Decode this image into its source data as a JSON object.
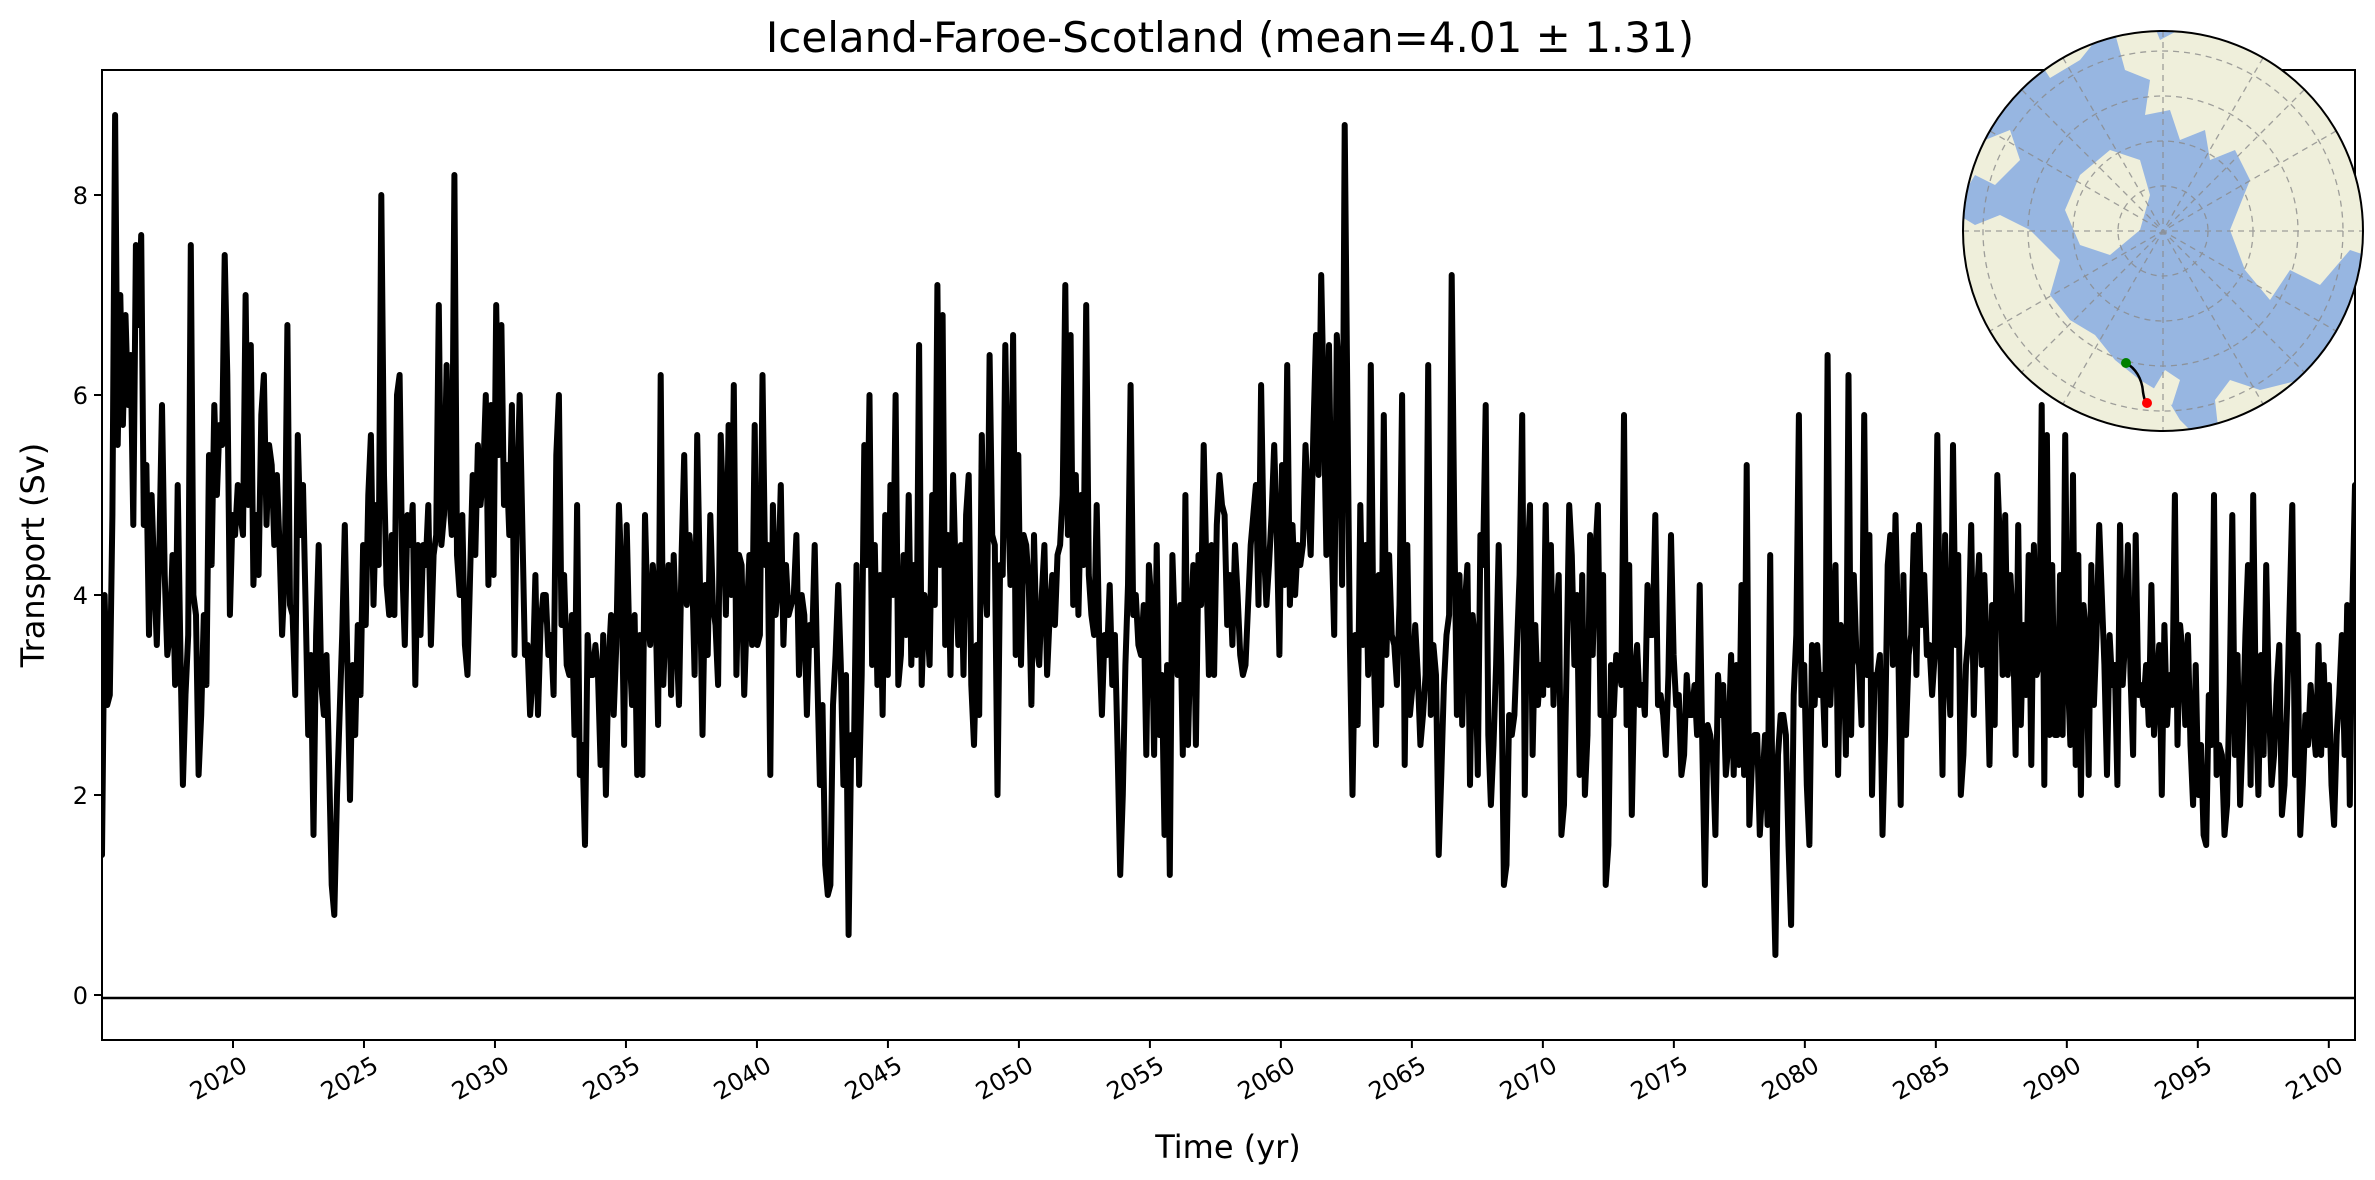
{
  "chart_data": {
    "type": "line",
    "title": "Iceland-Faroe-Scotland (mean=4.01 ± 1.31)",
    "xlabel": "Time (yr)",
    "ylabel": "Transport (Sv)",
    "xlim": [
      2015.0,
      2101.0
    ],
    "ylim": [
      -0.45,
      9.25
    ],
    "x_ticks": [
      "2020",
      "2025",
      "2030",
      "2035",
      "2040",
      "2045",
      "2050",
      "2055",
      "2060",
      "2065",
      "2070",
      "2075",
      "2080",
      "2085",
      "2090",
      "2095",
      "2100"
    ],
    "y_ticks": [
      "0",
      "2",
      "4",
      "6",
      "8"
    ],
    "zero_line": 0,
    "grid": false,
    "series": [
      {
        "color": "#000000",
        "sampling": "monthly",
        "x_start": 2015.0,
        "x_end": 2101.0,
        "values": [
          1.4,
          4.0,
          2.9,
          3.0,
          4.8,
          8.8,
          5.5,
          7.0,
          5.7,
          6.8,
          5.9,
          6.4,
          4.7,
          7.5,
          6.7,
          7.6,
          4.7,
          5.3,
          3.6,
          5.0,
          4.2,
          3.5,
          4.5,
          5.9,
          4.2,
          3.4,
          3.6,
          4.4,
          3.1,
          5.1,
          3.5,
          2.1,
          3.0,
          3.6,
          7.5,
          4.0,
          3.8,
          2.2,
          2.8,
          3.8,
          3.1,
          5.4,
          4.3,
          5.9,
          5.0,
          5.7,
          5.5,
          7.4,
          6.2,
          3.8,
          4.8,
          4.6,
          5.1,
          4.8,
          4.6,
          7.0,
          4.9,
          6.5,
          4.1,
          4.8,
          4.2,
          5.8,
          6.2,
          4.7,
          5.5,
          5.3,
          4.5,
          5.2,
          4.5,
          3.6,
          4.2,
          6.7,
          3.9,
          3.8,
          3.0,
          5.6,
          4.6,
          5.1,
          3.9,
          2.6,
          3.4,
          1.6,
          3.6,
          4.5,
          3.1,
          2.8,
          3.4,
          2.3,
          1.1,
          0.8,
          2.0,
          2.8,
          3.6,
          4.7,
          3.3,
          1.95,
          3.3,
          2.6,
          3.7,
          3.0,
          4.5,
          3.7,
          5.0,
          5.6,
          3.9,
          4.9,
          4.3,
          8.0,
          5.2,
          4.1,
          3.8,
          4.6,
          3.8,
          6.0,
          6.2,
          4.3,
          3.5,
          4.8,
          4.5,
          4.9,
          3.1,
          4.5,
          3.6,
          4.5,
          4.3,
          4.9,
          3.5,
          4.4,
          4.6,
          6.9,
          4.5,
          4.8,
          6.3,
          5.0,
          4.6,
          8.2,
          4.4,
          4.0,
          4.8,
          3.5,
          3.2,
          4.2,
          5.2,
          4.4,
          5.5,
          4.9,
          5.2,
          6.0,
          4.1,
          5.9,
          4.2,
          6.9,
          5.4,
          6.7,
          4.9,
          5.3,
          4.6,
          5.9,
          3.4,
          5.0,
          6.0,
          4.7,
          3.4,
          3.5,
          2.8,
          3.2,
          4.2,
          2.8,
          3.7,
          4.0,
          4.0,
          3.4,
          3.6,
          3.0,
          5.4,
          6.0,
          3.7,
          4.2,
          3.3,
          3.2,
          3.8,
          2.6,
          4.9,
          2.2,
          2.5,
          1.5,
          3.6,
          3.2,
          3.2,
          3.5,
          3.2,
          2.3,
          3.6,
          2.0,
          3.3,
          3.8,
          2.8,
          3.5,
          4.9,
          4.2,
          2.5,
          4.7,
          3.5,
          2.9,
          3.8,
          2.2,
          3.6,
          2.2,
          4.8,
          3.8,
          3.5,
          4.3,
          3.9,
          2.7,
          6.2,
          3.1,
          3.8,
          4.3,
          3.0,
          4.4,
          3.6,
          2.9,
          4.4,
          5.4,
          3.9,
          4.6,
          4.3,
          3.2,
          5.6,
          4.2,
          2.6,
          4.1,
          3.4,
          4.8,
          3.9,
          3.7,
          3.1,
          5.6,
          4.8,
          3.8,
          5.7,
          4.0,
          6.1,
          3.2,
          4.4,
          4.3,
          3.0,
          3.8,
          4.4,
          3.5,
          5.7,
          3.5,
          3.6,
          6.2,
          4.3,
          4.5,
          2.2,
          4.9,
          3.8,
          4.1,
          5.1,
          3.5,
          4.3,
          3.8,
          3.9,
          4.0,
          4.6,
          3.2,
          4.0,
          3.8,
          2.8,
          3.7,
          3.5,
          4.5,
          3.2,
          2.1,
          2.9,
          1.3,
          1.0,
          1.1,
          2.9,
          3.4,
          4.1,
          3.3,
          2.1,
          3.2,
          0.6,
          2.6,
          2.4,
          4.3,
          2.1,
          3.2,
          5.5,
          4.3,
          6.0,
          3.3,
          4.5,
          3.1,
          4.2,
          2.8,
          4.8,
          3.2,
          5.1,
          4.0,
          6.0,
          3.1,
          3.4,
          4.4,
          3.6,
          5.0,
          3.3,
          4.3,
          3.4,
          6.5,
          3.1,
          4.0,
          3.8,
          3.3,
          5.0,
          3.9,
          7.1,
          4.3,
          6.8,
          3.5,
          4.6,
          3.2,
          5.2,
          4.2,
          3.5,
          4.5,
          3.2,
          4.8,
          5.2,
          3.1,
          2.5,
          3.5,
          2.8,
          5.6,
          4.2,
          3.8,
          6.4,
          4.6,
          4.5,
          2.0,
          4.3,
          4.2,
          6.5,
          5.0,
          4.1,
          6.6,
          3.4,
          5.4,
          3.3,
          4.6,
          4.5,
          4.1,
          2.9,
          4.6,
          3.5,
          3.3,
          4.0,
          4.5,
          3.2,
          3.8,
          4.2,
          3.7,
          4.4,
          4.5,
          5.0,
          7.1,
          4.6,
          6.6,
          3.9,
          5.2,
          3.8,
          5.0,
          4.3,
          6.9,
          4.2,
          3.8,
          3.6,
          4.9,
          3.5,
          2.8,
          3.6,
          3.4,
          4.1,
          3.1,
          3.6,
          2.5,
          1.2,
          2.0,
          3.3,
          4.1,
          6.1,
          3.8,
          4.0,
          3.5,
          3.4,
          3.9,
          2.4,
          4.3,
          3.9,
          2.4,
          4.5,
          2.6,
          3.2,
          1.6,
          3.3,
          1.2,
          4.4,
          3.6,
          3.2,
          3.9,
          2.4,
          5.0,
          2.5,
          3.6,
          4.3,
          2.5,
          4.4,
          3.9,
          5.5,
          4.3,
          3.2,
          4.5,
          3.2,
          4.7,
          5.2,
          4.9,
          4.8,
          3.7,
          4.2,
          3.5,
          4.5,
          4.0,
          3.4,
          3.2,
          3.3,
          3.9,
          4.5,
          4.8,
          5.1,
          3.9,
          6.1,
          4.5,
          3.9,
          4.3,
          4.8,
          5.5,
          4.6,
          3.4,
          5.3,
          4.1,
          6.3,
          3.9,
          4.7,
          4.0,
          4.5,
          4.3,
          4.5,
          5.5,
          4.9,
          4.4,
          5.6,
          6.6,
          5.2,
          7.2,
          5.9,
          4.4,
          6.5,
          4.6,
          3.6,
          6.6,
          6.1,
          4.1,
          8.7,
          6.0,
          3.5,
          2.0,
          3.6,
          2.7,
          4.9,
          3.5,
          4.5,
          3.2,
          6.3,
          3.6,
          2.5,
          4.2,
          2.9,
          5.8,
          3.4,
          4.4,
          3.6,
          3.5,
          3.1,
          3.9,
          6.0,
          2.3,
          4.5,
          2.8,
          3.1,
          3.7,
          3.2,
          2.5,
          2.8,
          3.2,
          6.3,
          2.8,
          3.5,
          3.2,
          1.4,
          2.2,
          3.1,
          3.6,
          3.8,
          7.2,
          4.7,
          2.8,
          4.2,
          2.7,
          3.9,
          4.3,
          2.1,
          3.8,
          3.5,
          2.2,
          4.6,
          4.3,
          5.9,
          2.6,
          1.9,
          2.5,
          3.3,
          4.5,
          3.3,
          1.1,
          1.3,
          2.8,
          2.6,
          2.8,
          3.5,
          4.2,
          5.8,
          2.0,
          4.3,
          4.9,
          2.4,
          3.7,
          2.9,
          3.3,
          3.0,
          4.9,
          3.1,
          4.5,
          2.9,
          3.7,
          4.2,
          1.6,
          1.9,
          3.3,
          4.9,
          4.4,
          3.3,
          4.0,
          2.2,
          4.2,
          2.0,
          2.6,
          4.6,
          3.4,
          4.4,
          4.9,
          2.8,
          4.2,
          1.1,
          1.5,
          3.3,
          2.8,
          3.4,
          3.3,
          3.1,
          5.8,
          2.7,
          4.3,
          1.8,
          3.2,
          3.5,
          2.9,
          3.1,
          2.8,
          4.1,
          3.6,
          3.6,
          4.8,
          2.9,
          3.0,
          2.8,
          2.4,
          3.2,
          4.6,
          3.4,
          2.9,
          3.0,
          2.2,
          2.4,
          3.2,
          2.8,
          2.8,
          3.1,
          2.6,
          4.1,
          2.5,
          1.1,
          2.7,
          2.6,
          2.4,
          1.6,
          3.2,
          2.8,
          3.1,
          2.2,
          2.5,
          3.4,
          2.2,
          3.3,
          2.3,
          4.1,
          2.2,
          5.3,
          1.7,
          2.3,
          2.6,
          2.6,
          1.6,
          2.1,
          2.6,
          1.7,
          4.4,
          1.5,
          0.4,
          2.4,
          2.8,
          2.8,
          2.6,
          1.5,
          0.7,
          3.0,
          3.6,
          5.8,
          2.9,
          3.3,
          2.1,
          1.5,
          3.5,
          2.9,
          3.5,
          3.0,
          3.2,
          2.5,
          6.4,
          2.9,
          3.6,
          4.3,
          2.2,
          3.7,
          3.6,
          2.4,
          6.2,
          2.6,
          4.2,
          3.4,
          3.3,
          2.7,
          5.8,
          3.2,
          4.6,
          2.0,
          3.2,
          3.2,
          3.4,
          1.6,
          2.6,
          4.3,
          4.6,
          3.3,
          4.8,
          3.6,
          1.9,
          4.2,
          2.6,
          3.4,
          3.6,
          4.6,
          3.2,
          4.7,
          3.7,
          4.2,
          3.4,
          3.5,
          3.0,
          3.4,
          5.6,
          3.7,
          2.2,
          4.6,
          3.3,
          2.8,
          5.5,
          3.5,
          4.4,
          2.0,
          2.4,
          3.3,
          3.6,
          4.7,
          2.8,
          3.9,
          4.4,
          3.3,
          4.2,
          3.4,
          2.3,
          3.9,
          2.7,
          5.2,
          4.5,
          3.2,
          4.8,
          3.2,
          4.2,
          3.7,
          2.4,
          4.7,
          2.7,
          3.7,
          3.0,
          4.4,
          2.3,
          4.5,
          3.2,
          3.3,
          5.9,
          2.1,
          5.6,
          2.6,
          4.3,
          2.6,
          2.6,
          4.2,
          2.6,
          5.6,
          3.2,
          2.5,
          5.2,
          2.3,
          4.4,
          2.0,
          3.9,
          3.6,
          2.2,
          4.3,
          2.9,
          3.6,
          4.7,
          4.0,
          3.3,
          2.2,
          3.6,
          3.1,
          3.3,
          2.1,
          4.7,
          3.1,
          3.6,
          4.5,
          3.2,
          2.4,
          4.6,
          3.0,
          3.1,
          2.9,
          3.3,
          2.7,
          4.1,
          2.6,
          3.1,
          3.5,
          2.0,
          3.7,
          2.7,
          3.2,
          2.9,
          5.0,
          2.5,
          3.7,
          3.4,
          2.7,
          3.6,
          2.5,
          1.9,
          3.3,
          2.0,
          2.5,
          1.6,
          1.5,
          3.0,
          2.5,
          5.0,
          2.2,
          2.5,
          2.4,
          1.6,
          1.9,
          3.1,
          4.8,
          2.4,
          3.4,
          1.9,
          2.6,
          3.6,
          4.3,
          2.1,
          5.0,
          2.9,
          2.0,
          3.4,
          2.4,
          4.3,
          3.0,
          2.1,
          2.4,
          3.1,
          3.5,
          1.8,
          2.1,
          2.9,
          3.9,
          4.9,
          2.2,
          3.6,
          1.6,
          2.1,
          2.8,
          2.5,
          3.1,
          2.7,
          2.4,
          3.5,
          2.4,
          3.3,
          2.5,
          3.1,
          2.1,
          1.7,
          2.6,
          3.0,
          3.6,
          2.4,
          3.9,
          1.9,
          3.9,
          5.1
        ]
      }
    ]
  },
  "inset_map": {
    "projection": "north-polar-stereographic",
    "ocean_color": "#97b6e1",
    "land_color": "#efefdb",
    "section_start_color": "#008000",
    "section_end_color": "#ff0000"
  }
}
